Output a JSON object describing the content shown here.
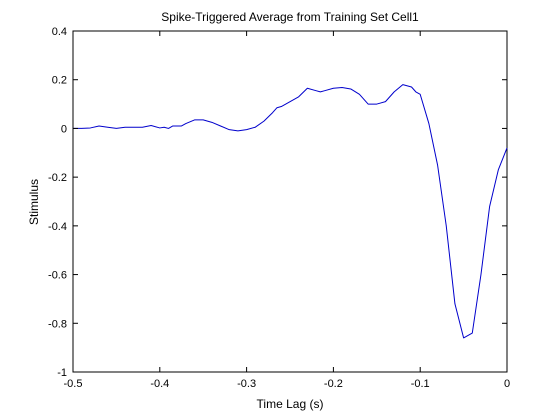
{
  "chart_data": {
    "type": "line",
    "title": "Spike-Triggered Average from Training Set Cell1",
    "xlabel": "Time Lag (s)",
    "ylabel": "Stimulus",
    "xlim": [
      -0.5,
      0
    ],
    "ylim": [
      -1,
      0.4
    ],
    "xticks": [
      -0.5,
      -0.4,
      -0.3,
      -0.2,
      -0.1,
      0
    ],
    "xtick_labels": [
      "-0.5",
      "-0.4",
      "-0.3",
      "-0.2",
      "-0.1",
      "0"
    ],
    "yticks": [
      0.4,
      0.2,
      0,
      -0.2,
      -0.4,
      -0.6,
      -0.8,
      -1
    ],
    "ytick_labels": [
      "0.4",
      "0.2",
      "0",
      "-0.2",
      "-0.4",
      "-0.6",
      "-0.8",
      "-1"
    ],
    "grid": false,
    "series": [
      {
        "color": "#0000cc",
        "x": [
          -0.5,
          -0.49,
          -0.48,
          -0.47,
          -0.46,
          -0.45,
          -0.44,
          -0.43,
          -0.42,
          -0.41,
          -0.4,
          -0.395,
          -0.39,
          -0.385,
          -0.38,
          -0.375,
          -0.37,
          -0.36,
          -0.35,
          -0.34,
          -0.33,
          -0.32,
          -0.31,
          -0.3,
          -0.29,
          -0.28,
          -0.27,
          -0.265,
          -0.26,
          -0.25,
          -0.24,
          -0.23,
          -0.22,
          -0.215,
          -0.21,
          -0.2,
          -0.19,
          -0.18,
          -0.17,
          -0.16,
          -0.15,
          -0.14,
          -0.13,
          -0.12,
          -0.11,
          -0.105,
          -0.1,
          -0.09,
          -0.08,
          -0.07,
          -0.06,
          -0.05,
          -0.04,
          -0.03,
          -0.02,
          -0.01,
          0
        ],
        "y": [
          0,
          0,
          0.002,
          0.01,
          0.005,
          0,
          0.005,
          0.005,
          0.005,
          0.012,
          0.002,
          0.005,
          0,
          0.01,
          0.01,
          0.01,
          0.02,
          0.035,
          0.035,
          0.025,
          0.01,
          -0.005,
          -0.01,
          -0.005,
          0.005,
          0.03,
          0.065,
          0.085,
          0.09,
          0.11,
          0.13,
          0.165,
          0.155,
          0.15,
          0.155,
          0.165,
          0.168,
          0.162,
          0.14,
          0.1,
          0.1,
          0.11,
          0.15,
          0.18,
          0.17,
          0.15,
          0.14,
          0.02,
          -0.15,
          -0.4,
          -0.72,
          -0.86,
          -0.84,
          -0.6,
          -0.32,
          -0.17,
          -0.08
        ]
      }
    ]
  }
}
